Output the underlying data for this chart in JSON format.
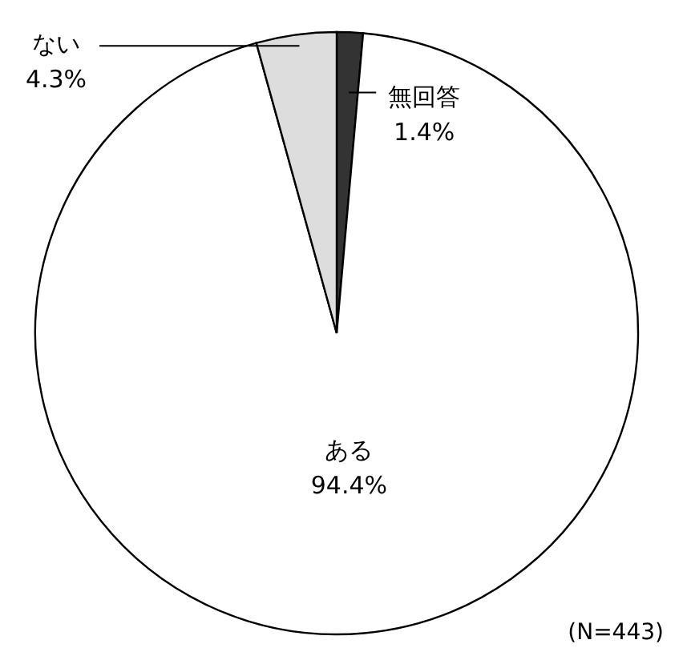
{
  "chart_data": {
    "type": "pie",
    "categories": [
      "無回答",
      "ある",
      "ない"
    ],
    "values": [
      1.4,
      94.4,
      4.3
    ],
    "colors": [
      "#333333",
      "#ffffff",
      "#dddddd"
    ],
    "value_labels": [
      "1.4%",
      "94.4%",
      "4.3%"
    ],
    "annotations": [
      "(N=443)"
    ]
  }
}
